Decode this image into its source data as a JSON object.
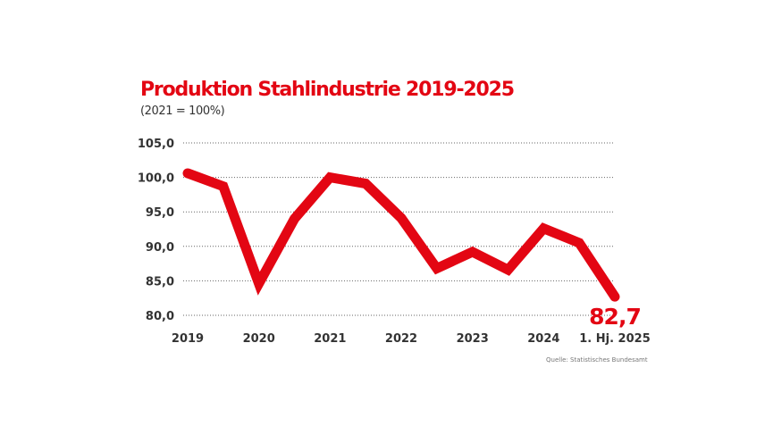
{
  "chart_data": {
    "type": "line",
    "title": "Produktion Stahlindustrie 2019-2025",
    "subtitle": "(2021 = 100%)",
    "source": "Quelle: Statistisches Bundesamt",
    "x_tick_labels": [
      "2019",
      "2020",
      "2021",
      "2022",
      "2023",
      "2024",
      "1. Hj. 2025"
    ],
    "y_tick_labels": [
      "105,0",
      "100,0",
      "95,0",
      "90,0",
      "85,0",
      "80,0"
    ],
    "y_ticks": [
      105,
      100,
      95,
      90,
      85,
      80
    ],
    "ylim": [
      80,
      105
    ],
    "grid": "horizontal dotted",
    "x": [
      "2019",
      "2019 H2",
      "2020",
      "2020 H2",
      "2021",
      "2021 H2",
      "2022",
      "2022 H2",
      "2023",
      "2023 H2",
      "2024",
      "2024 H2",
      "1. Hj. 2025"
    ],
    "values": [
      100.6,
      98.7,
      84.6,
      94.0,
      100.0,
      99.1,
      94.1,
      86.8,
      89.2,
      86.6,
      92.6,
      90.5,
      82.7
    ],
    "end_label": "82,7",
    "line_color": "#e30613"
  }
}
